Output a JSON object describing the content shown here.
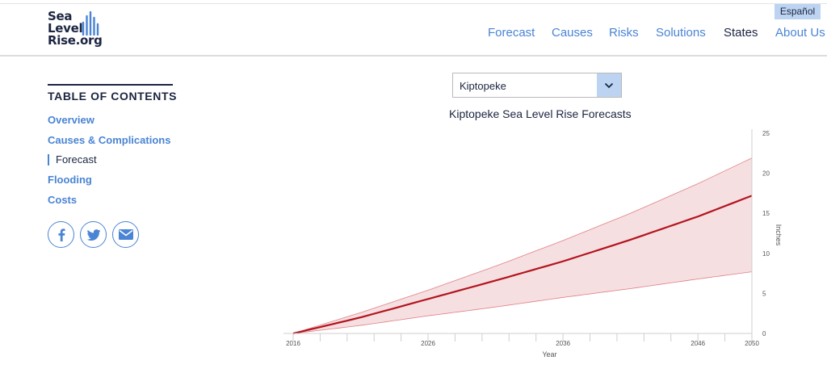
{
  "header": {
    "logo": [
      "Sea",
      "Level",
      "Rise.org"
    ],
    "language_button": "Español",
    "nav": [
      {
        "label": "Forecast",
        "active": false
      },
      {
        "label": "Causes",
        "active": false
      },
      {
        "label": "Risks",
        "active": false
      },
      {
        "label": "Solutions",
        "active": false
      },
      {
        "label": "States",
        "active": true
      },
      {
        "label": "About Us",
        "active": false
      }
    ]
  },
  "sidebar": {
    "title": "TABLE OF CONTENTS",
    "items": [
      {
        "label": "Overview",
        "current": false
      },
      {
        "label": "Causes & Complications",
        "current": false
      },
      {
        "label": "Forecast",
        "current": true
      },
      {
        "label": "Flooding",
        "current": false
      },
      {
        "label": "Costs",
        "current": false
      }
    ],
    "social": [
      "facebook-icon",
      "twitter-icon",
      "email-icon"
    ]
  },
  "location_select": {
    "value": "Kiptopeke"
  },
  "colors": {
    "navy": "#1c2541",
    "link_blue": "#4a84d4",
    "light_blue": "#bcd4f1",
    "forecast_line": "#b3141d",
    "band_fill": "#f6dfe1",
    "band_edge": "#e07f85"
  },
  "chart_data": {
    "type": "area",
    "title": "Kiptopeke Sea Level Rise Forecasts",
    "xlabel": "Year",
    "ylabel": "Inches",
    "xlim": [
      2016,
      2050
    ],
    "ylim": [
      0,
      25
    ],
    "x_ticks": [
      "2016",
      "2026",
      "2036",
      "2046",
      "2050"
    ],
    "y_ticks": [
      "0",
      "5",
      "10",
      "15",
      "20",
      "25"
    ],
    "y_axis_position": "right",
    "grid": false,
    "series": [
      {
        "role": "median",
        "x": [
          2016,
          2021,
          2026,
          2031,
          2036,
          2041,
          2046,
          2050
        ],
        "y": [
          0,
          2.0,
          4.3,
          6.6,
          9.0,
          11.7,
          14.6,
          17.2
        ]
      },
      {
        "role": "upper",
        "x": [
          2016,
          2021,
          2026,
          2031,
          2036,
          2041,
          2046,
          2050
        ],
        "y": [
          0,
          2.6,
          5.4,
          8.4,
          11.6,
          15.0,
          18.7,
          21.9
        ]
      },
      {
        "role": "lower",
        "x": [
          2016,
          2021,
          2026,
          2031,
          2036,
          2041,
          2046,
          2050
        ],
        "y": [
          0,
          1.0,
          2.2,
          3.3,
          4.5,
          5.6,
          6.8,
          7.7
        ]
      }
    ]
  }
}
